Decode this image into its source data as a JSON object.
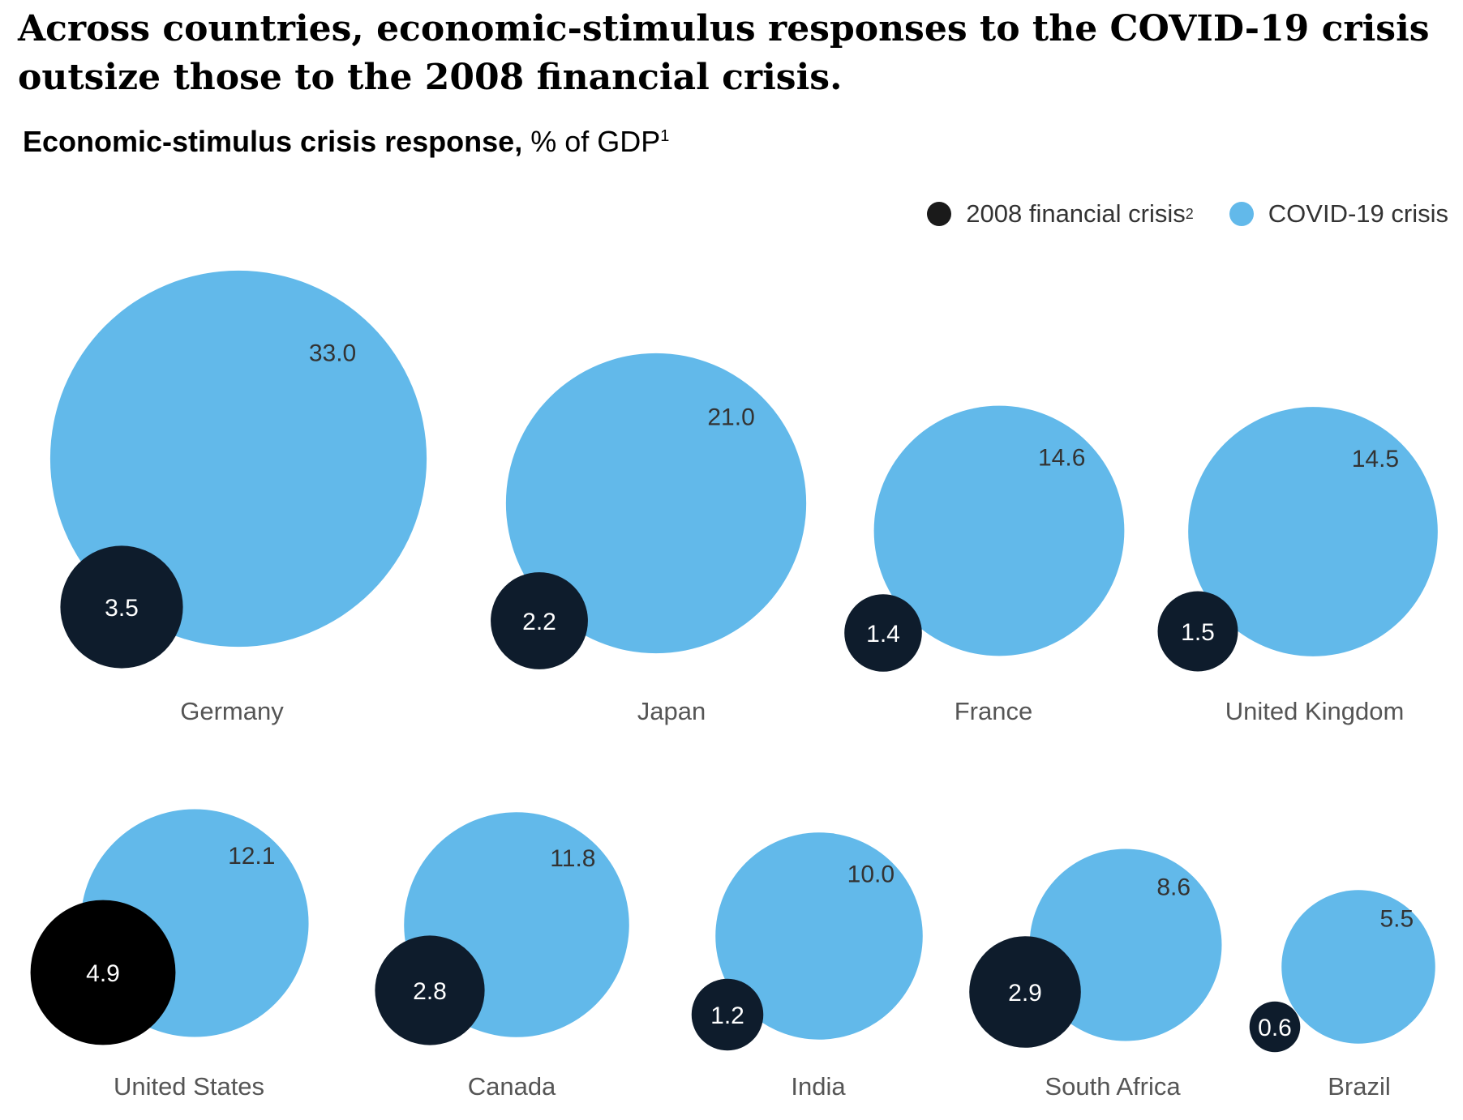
{
  "title": "Across countries, economic-stimulus responses to the COVID-19 crisis outsize those to the 2008 financial crisis.",
  "subtitle": {
    "bold": "Economic-stimulus crisis response,",
    "unit": " % of GDP",
    "footnote": "1"
  },
  "legend": [
    {
      "label": "2008 financial crisis",
      "footnote": "2",
      "color": "#1a1a1a"
    },
    {
      "label": "COVID-19 crisis",
      "footnote": "",
      "color": "#62b9ea"
    }
  ],
  "colors": {
    "covid": "#62b9ea",
    "financial": "#0e1c2c",
    "financial_us": "#000000",
    "covid_label": "#333333",
    "financial_label": "#ffffff",
    "country_label": "#555555"
  },
  "chart_data": {
    "type": "bubble",
    "unit": "% of GDP",
    "series": [
      {
        "name": "2008 financial crisis",
        "values": [
          3.5,
          2.2,
          1.4,
          1.5,
          4.9,
          2.8,
          1.2,
          2.9,
          0.6
        ]
      },
      {
        "name": "COVID-19 crisis",
        "values": [
          33.0,
          21.0,
          14.6,
          14.5,
          12.1,
          11.8,
          10.0,
          8.6,
          5.5
        ]
      }
    ],
    "countries": [
      {
        "name": "Germany",
        "covid": "33.0",
        "financial": "3.5"
      },
      {
        "name": "Japan",
        "covid": "21.0",
        "financial": "2.2"
      },
      {
        "name": "France",
        "covid": "14.6",
        "financial": "1.4"
      },
      {
        "name": "United Kingdom",
        "covid": "14.5",
        "financial": "1.5"
      },
      {
        "name": "United States",
        "covid": "12.1",
        "financial": "4.9"
      },
      {
        "name": "Canada",
        "covid": "11.8",
        "financial": "2.8"
      },
      {
        "name": "India",
        "covid": "10.0",
        "financial": "1.2"
      },
      {
        "name": "South Africa",
        "covid": "8.6",
        "financial": "2.9"
      },
      {
        "name": "Brazil",
        "covid": "5.5",
        "financial": "0.6"
      }
    ]
  }
}
